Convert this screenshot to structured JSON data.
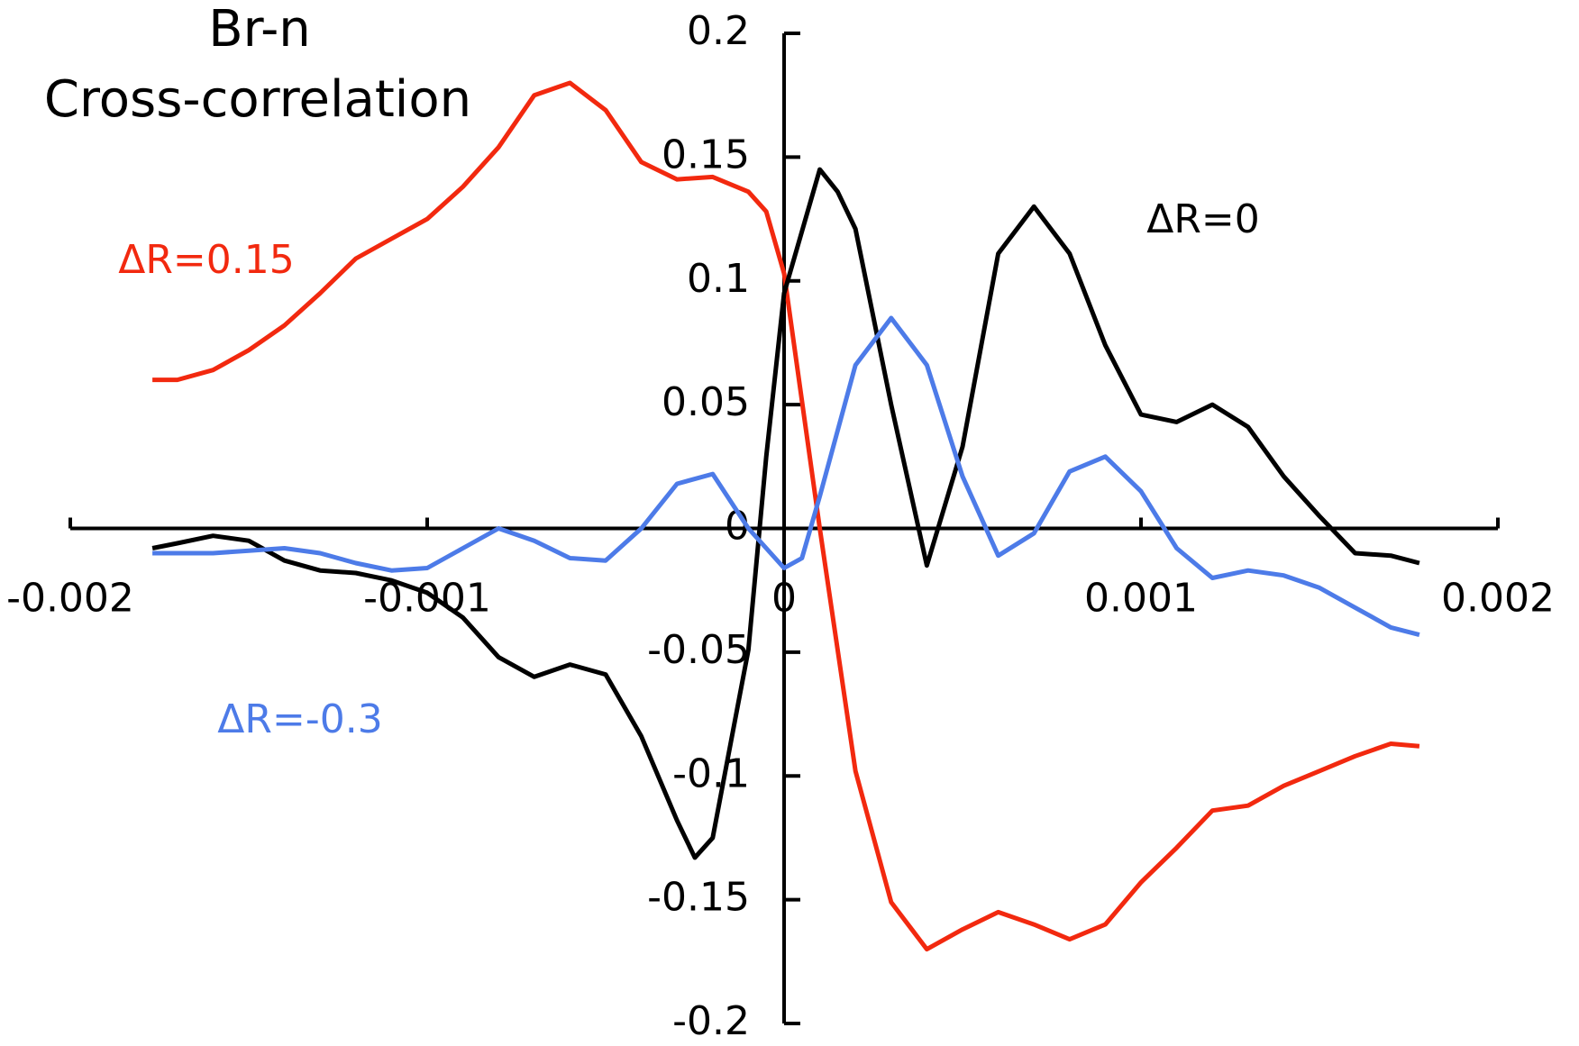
{
  "chart_data": {
    "type": "line",
    "title": [
      "Br-n",
      "Cross-correlation"
    ],
    "xlim": [
      -0.002,
      0.002
    ],
    "ylim": [
      -0.2,
      0.2
    ],
    "xticks": [
      -0.002,
      -0.001,
      0,
      0.001,
      0.002
    ],
    "yticks": [
      0.2,
      0.15,
      0.1,
      0.05,
      0,
      -0.05,
      -0.1,
      -0.15,
      -0.2
    ],
    "series": [
      {
        "name": "ΔR=0.15",
        "color": "#f2290f",
        "x": [
          -0.00177,
          -0.0017,
          -0.0016,
          -0.0015,
          -0.0014,
          -0.0013,
          -0.0012,
          -0.0011,
          -0.001,
          -0.0009,
          -0.0008,
          -0.0007,
          -0.0006,
          -0.0005,
          -0.0004,
          -0.0003,
          -0.0002,
          -0.0001,
          -5e-05,
          0,
          0.0001,
          0.0002,
          0.0003,
          0.0004,
          0.0005,
          0.0006,
          0.0007,
          0.0008,
          0.0009,
          0.001,
          0.0011,
          0.0012,
          0.0013,
          0.0014,
          0.0015,
          0.0016,
          0.0017,
          0.00178
        ],
        "values": [
          0.06,
          0.06,
          0.064,
          0.072,
          0.082,
          0.095,
          0.109,
          0.117,
          0.125,
          0.138,
          0.154,
          0.175,
          0.18,
          0.169,
          0.148,
          0.141,
          0.142,
          0.136,
          0.128,
          0.103,
          0.0,
          -0.098,
          -0.151,
          -0.17,
          -0.162,
          -0.155,
          -0.16,
          -0.166,
          -0.16,
          -0.143,
          -0.129,
          -0.114,
          -0.112,
          -0.104,
          -0.098,
          -0.092,
          -0.087,
          -0.088
        ]
      },
      {
        "name": "ΔR=0",
        "color": "#000000",
        "x": [
          -0.00177,
          -0.0017,
          -0.0016,
          -0.0015,
          -0.0014,
          -0.0013,
          -0.0012,
          -0.0011,
          -0.001,
          -0.0009,
          -0.0008,
          -0.0007,
          -0.0006,
          -0.0005,
          -0.0004,
          -0.0003,
          -0.00025,
          -0.0002,
          -0.0001,
          -5e-05,
          0,
          0.0001,
          0.00015,
          0.0002,
          0.0003,
          0.0004,
          0.0005,
          0.0006,
          0.0007,
          0.0008,
          0.0009,
          0.001,
          0.0011,
          0.0012,
          0.0013,
          0.0014,
          0.0015,
          0.0016,
          0.0017,
          0.00178
        ],
        "values": [
          -0.008,
          -0.006,
          -0.003,
          -0.005,
          -0.013,
          -0.017,
          -0.018,
          -0.021,
          -0.026,
          -0.036,
          -0.052,
          -0.06,
          -0.055,
          -0.059,
          -0.084,
          -0.118,
          -0.133,
          -0.125,
          -0.049,
          0.029,
          0.095,
          0.145,
          0.136,
          0.121,
          0.05,
          -0.015,
          0.033,
          0.111,
          0.13,
          0.111,
          0.074,
          0.046,
          0.043,
          0.05,
          0.041,
          0.021,
          0.005,
          -0.01,
          -0.011,
          -0.014
        ]
      },
      {
        "name": "ΔR=-0.3",
        "color": "#4d7be8",
        "x": [
          -0.00177,
          -0.0017,
          -0.0016,
          -0.0015,
          -0.0014,
          -0.0013,
          -0.0012,
          -0.0011,
          -0.001,
          -0.0009,
          -0.0008,
          -0.0007,
          -0.0006,
          -0.0005,
          -0.0004,
          -0.0003,
          -0.0002,
          -0.0001,
          0,
          5e-05,
          0.0001,
          0.0002,
          0.0003,
          0.0004,
          0.0005,
          0.0006,
          0.0007,
          0.0008,
          0.0009,
          0.001,
          0.0011,
          0.0012,
          0.0013,
          0.0014,
          0.0015,
          0.0016,
          0.0017,
          0.00178
        ],
        "values": [
          -0.01,
          -0.01,
          -0.01,
          -0.009,
          -0.008,
          -0.01,
          -0.014,
          -0.017,
          -0.016,
          -0.008,
          0.0,
          -0.005,
          -0.012,
          -0.013,
          0.0,
          0.018,
          0.022,
          0.0,
          -0.016,
          -0.012,
          0.013,
          0.066,
          0.085,
          0.066,
          0.021,
          -0.011,
          -0.002,
          0.023,
          0.029,
          0.015,
          -0.008,
          -0.02,
          -0.017,
          -0.019,
          -0.024,
          -0.032,
          -0.04,
          -0.043
        ]
      }
    ]
  }
}
